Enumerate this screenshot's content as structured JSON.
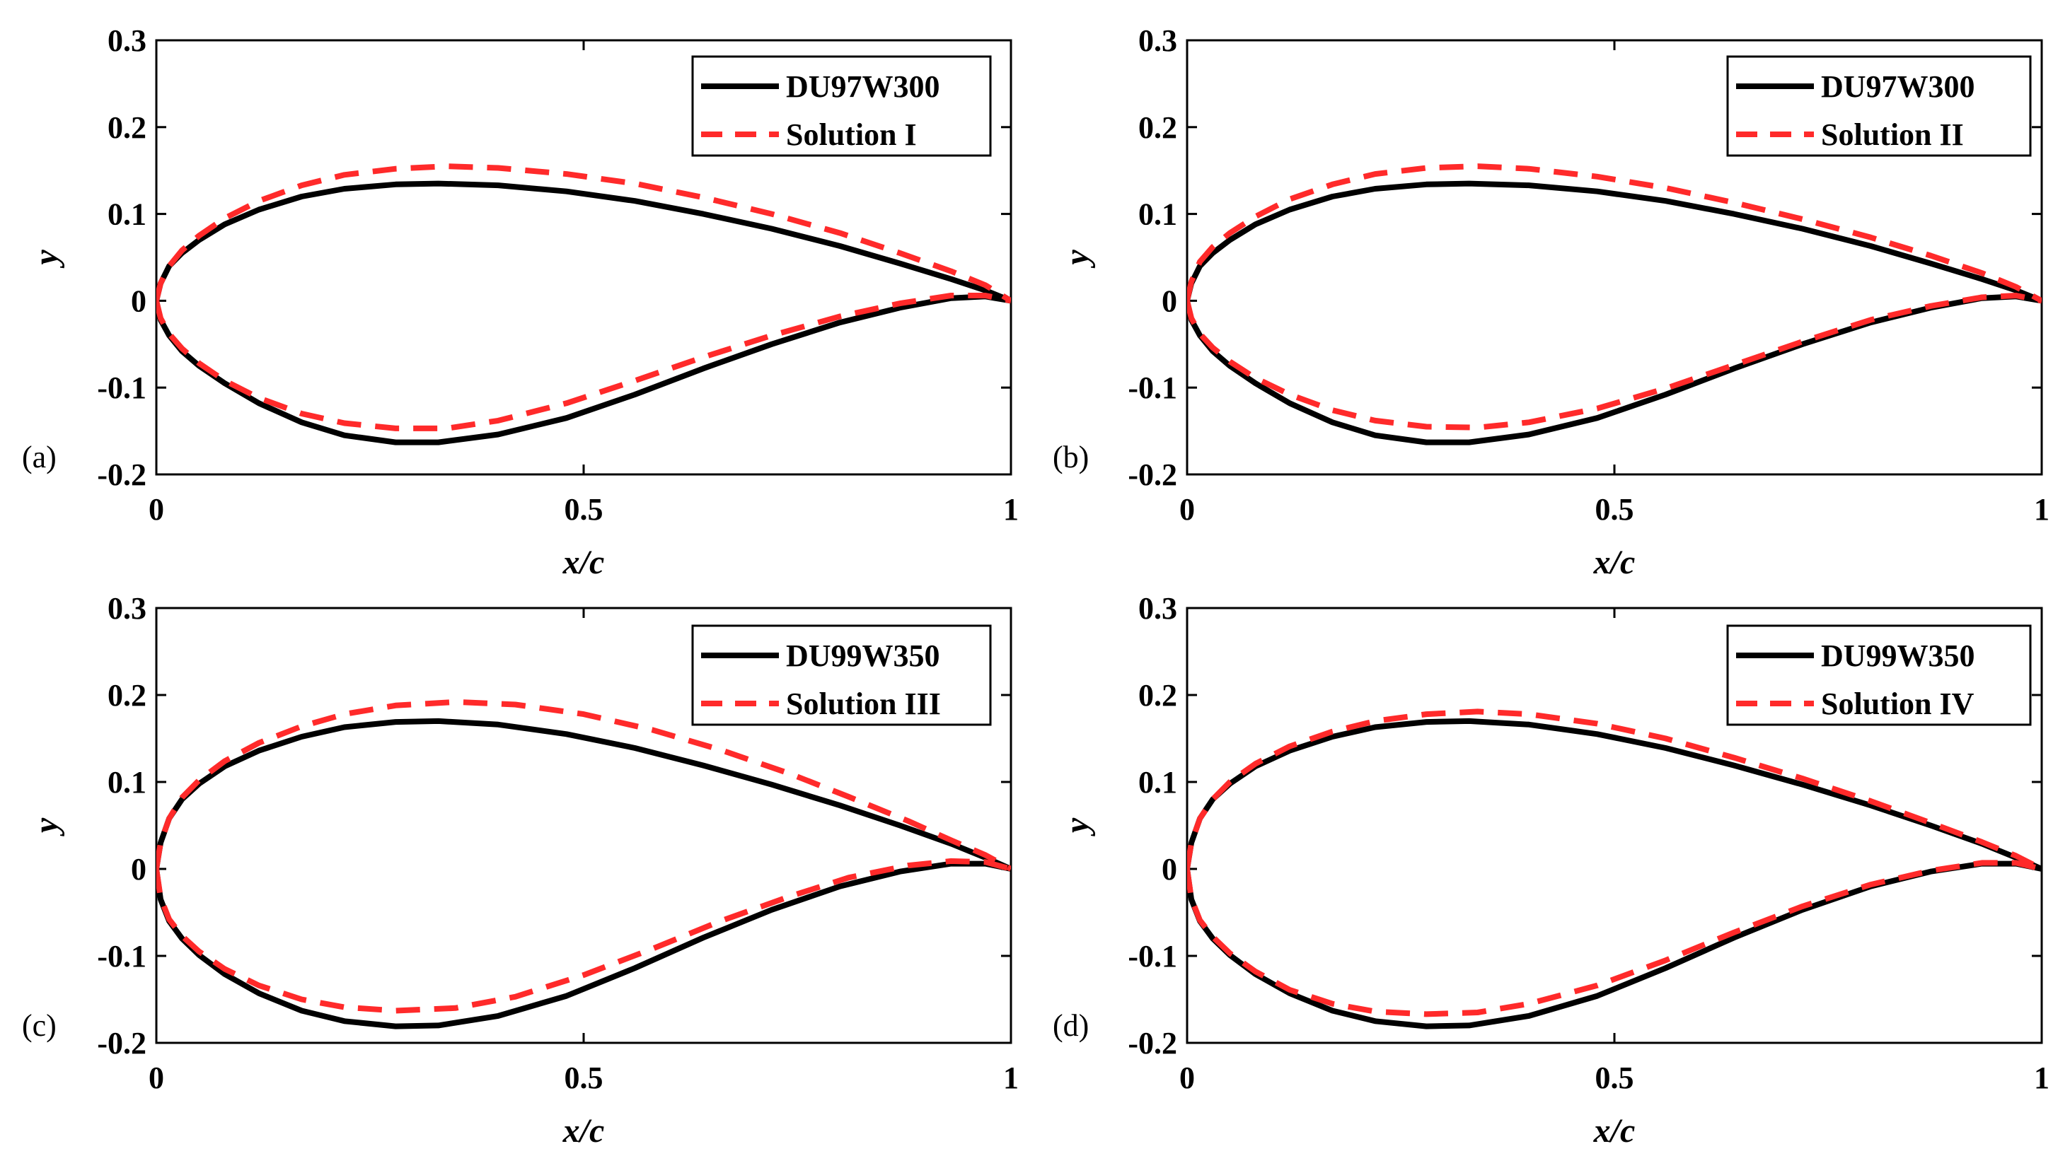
{
  "chart_data": [
    {
      "type": "line",
      "panel_label": "(a)",
      "xlabel": "x/c",
      "ylabel": "y",
      "xlim": [
        0,
        1
      ],
      "ylim": [
        -0.2,
        0.3
      ],
      "xticks": [
        "0",
        "0.5",
        "1"
      ],
      "yticks": [
        "0.3",
        "0.2",
        "0.1",
        "0",
        "-0.1",
        "-0.2"
      ],
      "legend_position": "top-right",
      "series": [
        {
          "name": "DU97W300",
          "color": "#000000",
          "dash": "solid",
          "x": [
            0,
            0.005,
            0.015,
            0.03,
            0.05,
            0.08,
            0.12,
            0.17,
            0.22,
            0.28,
            0.33,
            0.4,
            0.48,
            0.56,
            0.64,
            0.72,
            0.8,
            0.87,
            0.93,
            0.97,
            1.0
          ],
          "upper": [
            0,
            0.02,
            0.04,
            0.055,
            0.07,
            0.088,
            0.105,
            0.12,
            0.129,
            0.134,
            0.135,
            0.133,
            0.126,
            0.115,
            0.1,
            0.083,
            0.063,
            0.043,
            0.025,
            0.012,
            0
          ],
          "lower": [
            0,
            -0.022,
            -0.04,
            -0.058,
            -0.075,
            -0.095,
            -0.118,
            -0.14,
            -0.155,
            -0.163,
            -0.163,
            -0.154,
            -0.135,
            -0.108,
            -0.078,
            -0.05,
            -0.025,
            -0.008,
            0.003,
            0.005,
            0
          ]
        },
        {
          "name": "Solution I",
          "color": "#ff2a2a",
          "dash": "dashed",
          "x": [
            0,
            0.005,
            0.015,
            0.03,
            0.05,
            0.08,
            0.12,
            0.17,
            0.22,
            0.28,
            0.34,
            0.4,
            0.48,
            0.56,
            0.64,
            0.72,
            0.8,
            0.87,
            0.93,
            0.97,
            1.0
          ],
          "upper": [
            0,
            0.02,
            0.04,
            0.058,
            0.075,
            0.095,
            0.115,
            0.133,
            0.145,
            0.152,
            0.155,
            0.153,
            0.146,
            0.135,
            0.119,
            0.1,
            0.078,
            0.055,
            0.034,
            0.018,
            0
          ],
          "lower": [
            0,
            -0.02,
            -0.038,
            -0.055,
            -0.072,
            -0.092,
            -0.112,
            -0.13,
            -0.141,
            -0.147,
            -0.147,
            -0.138,
            -0.118,
            -0.092,
            -0.065,
            -0.04,
            -0.018,
            -0.003,
            0.006,
            0.006,
            0
          ]
        }
      ],
      "legend": [
        "DU97W300",
        "Solution I"
      ]
    },
    {
      "type": "line",
      "panel_label": "(b)",
      "xlabel": "x/c",
      "ylabel": "y",
      "xlim": [
        0,
        1
      ],
      "ylim": [
        -0.2,
        0.3
      ],
      "xticks": [
        "0",
        "0.5",
        "1"
      ],
      "yticks": [
        "0.3",
        "0.2",
        "0.1",
        "0",
        "-0.1",
        "-0.2"
      ],
      "legend_position": "top-right",
      "series": [
        {
          "name": "DU97W300",
          "color": "#000000",
          "dash": "solid",
          "x": [
            0,
            0.005,
            0.015,
            0.03,
            0.05,
            0.08,
            0.12,
            0.17,
            0.22,
            0.28,
            0.33,
            0.4,
            0.48,
            0.56,
            0.64,
            0.72,
            0.8,
            0.87,
            0.93,
            0.97,
            1.0
          ],
          "upper": [
            0,
            0.02,
            0.04,
            0.055,
            0.07,
            0.088,
            0.105,
            0.12,
            0.129,
            0.134,
            0.135,
            0.133,
            0.126,
            0.115,
            0.1,
            0.083,
            0.063,
            0.043,
            0.025,
            0.012,
            0
          ],
          "lower": [
            0,
            -0.022,
            -0.04,
            -0.058,
            -0.075,
            -0.095,
            -0.118,
            -0.14,
            -0.155,
            -0.163,
            -0.163,
            -0.154,
            -0.135,
            -0.108,
            -0.078,
            -0.05,
            -0.025,
            -0.008,
            0.003,
            0.005,
            0
          ]
        },
        {
          "name": "Solution II",
          "color": "#ff2a2a",
          "dash": "dashed",
          "x": [
            0,
            0.005,
            0.015,
            0.03,
            0.05,
            0.08,
            0.12,
            0.17,
            0.22,
            0.28,
            0.34,
            0.4,
            0.48,
            0.56,
            0.64,
            0.72,
            0.8,
            0.87,
            0.93,
            0.97,
            1.0
          ],
          "upper": [
            0,
            0.022,
            0.045,
            0.062,
            0.078,
            0.097,
            0.117,
            0.134,
            0.146,
            0.153,
            0.155,
            0.152,
            0.143,
            0.13,
            0.113,
            0.094,
            0.073,
            0.052,
            0.032,
            0.016,
            0
          ],
          "lower": [
            0,
            -0.02,
            -0.038,
            -0.054,
            -0.07,
            -0.089,
            -0.108,
            -0.126,
            -0.138,
            -0.145,
            -0.146,
            -0.14,
            -0.124,
            -0.101,
            -0.074,
            -0.047,
            -0.022,
            -0.006,
            0.004,
            0.006,
            0
          ]
        }
      ],
      "legend": [
        "DU97W300",
        "Solution II"
      ]
    },
    {
      "type": "line",
      "panel_label": "(c)",
      "xlabel": "x/c",
      "ylabel": "y",
      "xlim": [
        0,
        1
      ],
      "ylim": [
        -0.2,
        0.3
      ],
      "xticks": [
        "0",
        "0.5",
        "1"
      ],
      "yticks": [
        "0.3",
        "0.2",
        "0.1",
        "0",
        "-0.1",
        "-0.2"
      ],
      "legend_position": "top-right",
      "series": [
        {
          "name": "DU99W350",
          "color": "#000000",
          "dash": "solid",
          "x": [
            0,
            0.005,
            0.015,
            0.03,
            0.05,
            0.08,
            0.12,
            0.17,
            0.22,
            0.28,
            0.33,
            0.4,
            0.48,
            0.56,
            0.64,
            0.72,
            0.8,
            0.87,
            0.93,
            0.97,
            1.0
          ],
          "upper": [
            0,
            0.03,
            0.058,
            0.08,
            0.098,
            0.118,
            0.136,
            0.152,
            0.163,
            0.169,
            0.17,
            0.166,
            0.155,
            0.139,
            0.119,
            0.097,
            0.073,
            0.05,
            0.029,
            0.013,
            0
          ],
          "lower": [
            0,
            -0.035,
            -0.06,
            -0.08,
            -0.099,
            -0.121,
            -0.143,
            -0.163,
            -0.175,
            -0.181,
            -0.18,
            -0.169,
            -0.146,
            -0.114,
            -0.079,
            -0.047,
            -0.02,
            -0.003,
            0.006,
            0.006,
            0
          ]
        },
        {
          "name": "Solution III",
          "color": "#ff2a2a",
          "dash": "dashed",
          "x": [
            0,
            0.005,
            0.015,
            0.03,
            0.05,
            0.08,
            0.12,
            0.17,
            0.22,
            0.28,
            0.35,
            0.42,
            0.5,
            0.58,
            0.66,
            0.74,
            0.81,
            0.88,
            0.93,
            0.97,
            1.0
          ],
          "upper": [
            0,
            0.03,
            0.058,
            0.082,
            0.102,
            0.124,
            0.145,
            0.164,
            0.178,
            0.188,
            0.192,
            0.189,
            0.178,
            0.16,
            0.137,
            0.11,
            0.083,
            0.055,
            0.033,
            0.016,
            0
          ],
          "lower": [
            0,
            -0.033,
            -0.058,
            -0.077,
            -0.095,
            -0.115,
            -0.134,
            -0.15,
            -0.159,
            -0.163,
            -0.16,
            -0.147,
            -0.122,
            -0.092,
            -0.06,
            -0.032,
            -0.01,
            0.004,
            0.009,
            0.008,
            0
          ]
        }
      ],
      "legend": [
        "DU99W350",
        "Solution III"
      ]
    },
    {
      "type": "line",
      "panel_label": "(d)",
      "xlabel": "x/c",
      "ylabel": "y",
      "xlim": [
        0,
        1
      ],
      "ylim": [
        -0.2,
        0.3
      ],
      "xticks": [
        "0",
        "0.5",
        "1"
      ],
      "yticks": [
        "0.3",
        "0.2",
        "0.1",
        "0",
        "-0.1",
        "-0.2"
      ],
      "legend_position": "top-right",
      "series": [
        {
          "name": "DU99W350",
          "color": "#000000",
          "dash": "solid",
          "x": [
            0,
            0.005,
            0.015,
            0.03,
            0.05,
            0.08,
            0.12,
            0.17,
            0.22,
            0.28,
            0.33,
            0.4,
            0.48,
            0.56,
            0.64,
            0.72,
            0.8,
            0.87,
            0.93,
            0.97,
            1.0
          ],
          "upper": [
            0,
            0.03,
            0.058,
            0.08,
            0.098,
            0.118,
            0.136,
            0.152,
            0.163,
            0.169,
            0.17,
            0.166,
            0.155,
            0.139,
            0.119,
            0.097,
            0.073,
            0.05,
            0.029,
            0.013,
            0
          ],
          "lower": [
            0,
            -0.035,
            -0.06,
            -0.08,
            -0.099,
            -0.121,
            -0.143,
            -0.163,
            -0.175,
            -0.181,
            -0.18,
            -0.169,
            -0.146,
            -0.114,
            -0.079,
            -0.047,
            -0.02,
            -0.003,
            0.006,
            0.006,
            0
          ]
        },
        {
          "name": "Solution IV",
          "color": "#ff2a2a",
          "dash": "dashed",
          "x": [
            0,
            0.005,
            0.015,
            0.03,
            0.05,
            0.08,
            0.12,
            0.17,
            0.22,
            0.28,
            0.34,
            0.4,
            0.48,
            0.56,
            0.64,
            0.72,
            0.8,
            0.87,
            0.93,
            0.97,
            1.0
          ],
          "upper": [
            0,
            0.03,
            0.058,
            0.08,
            0.1,
            0.121,
            0.141,
            0.158,
            0.17,
            0.178,
            0.181,
            0.178,
            0.167,
            0.15,
            0.128,
            0.104,
            0.078,
            0.053,
            0.031,
            0.015,
            0
          ],
          "lower": [
            0,
            -0.034,
            -0.059,
            -0.078,
            -0.097,
            -0.118,
            -0.139,
            -0.155,
            -0.164,
            -0.167,
            -0.165,
            -0.155,
            -0.134,
            -0.105,
            -0.073,
            -0.043,
            -0.018,
            -0.002,
            0.007,
            0.007,
            0
          ]
        }
      ],
      "legend": [
        "DU99W350",
        "Solution IV"
      ]
    }
  ]
}
